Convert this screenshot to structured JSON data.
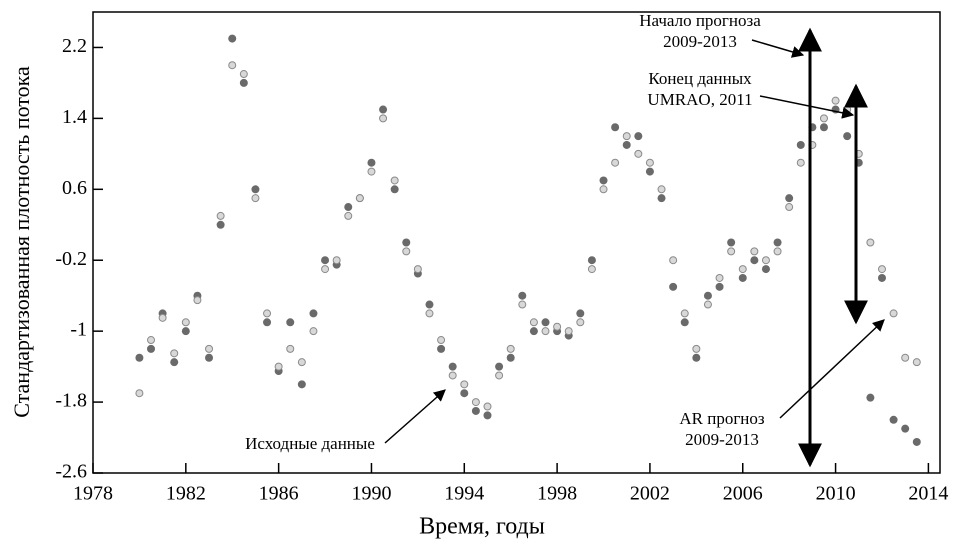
{
  "chart_data": {
    "type": "scatter",
    "x_label": "Время, годы",
    "y_label": "Стандартизованная плотность потока",
    "xlim": [
      1978,
      2014.5
    ],
    "xticks": [
      1978,
      1982,
      1986,
      1990,
      1994,
      1998,
      2002,
      2006,
      2010,
      2014
    ],
    "ylim": [
      -2.6,
      2.6
    ],
    "yticks": [
      -2.6,
      -1.8,
      -1.0,
      -0.2,
      0.6,
      1.4,
      2.2
    ],
    "grid": false,
    "x": [
      1980.0,
      1980.5,
      1981.0,
      1981.5,
      1982.0,
      1982.5,
      1983.0,
      1983.5,
      1984.0,
      1984.5,
      1985.0,
      1985.5,
      1986.0,
      1986.5,
      1987.0,
      1987.5,
      1988.0,
      1988.5,
      1989.0,
      1989.5,
      1990.0,
      1990.5,
      1991.0,
      1991.5,
      1992.0,
      1992.5,
      1993.0,
      1993.5,
      1994.0,
      1994.5,
      1995.0,
      1995.5,
      1996.0,
      1996.5,
      1997.0,
      1997.5,
      1998.0,
      1998.5,
      1999.0,
      1999.5,
      2000.0,
      2000.5,
      2001.0,
      2001.5,
      2002.0,
      2002.5,
      2003.0,
      2003.5,
      2004.0,
      2004.5,
      2005.0,
      2005.5,
      2006.0,
      2006.5,
      2007.0,
      2007.5,
      2008.0,
      2008.5,
      2009.0,
      2009.5,
      2010.0,
      2010.5,
      2011.0,
      2011.5,
      2012.0,
      2012.5,
      2013.0,
      2013.5
    ],
    "series": [
      {
        "color": "#6a6a6a",
        "values": [
          -1.3,
          -1.2,
          -0.8,
          -1.35,
          -1.0,
          -0.6,
          -1.3,
          0.2,
          2.3,
          1.8,
          0.6,
          -0.9,
          -1.45,
          -0.9,
          -1.6,
          -0.8,
          -0.2,
          -0.25,
          0.4,
          0.5,
          0.9,
          1.5,
          0.6,
          0.0,
          -0.35,
          -0.7,
          -1.2,
          -1.4,
          -1.7,
          -1.9,
          -1.95,
          -1.4,
          -1.3,
          -0.6,
          -1.0,
          -0.9,
          -1.0,
          -1.05,
          -0.8,
          -0.2,
          0.7,
          1.3,
          1.1,
          1.2,
          0.8,
          0.5,
          -0.5,
          -0.9,
          -1.3,
          -0.6,
          -0.5,
          0.0,
          -0.4,
          -0.2,
          -0.3,
          0.0,
          0.5,
          1.1,
          1.3,
          1.3,
          1.5,
          1.2,
          0.9,
          -1.75,
          -0.4,
          -2.0,
          -2.1,
          -2.25
        ]
      },
      {
        "color": "#d8d8d8",
        "values": [
          -1.7,
          -1.1,
          -0.85,
          -1.25,
          -0.9,
          -0.65,
          -1.2,
          0.3,
          2.0,
          1.9,
          0.5,
          -0.8,
          -1.4,
          -1.2,
          -1.35,
          -1.0,
          -0.3,
          -0.2,
          0.3,
          0.5,
          0.8,
          1.4,
          0.7,
          -0.1,
          -0.3,
          -0.8,
          -1.1,
          -1.5,
          -1.6,
          -1.8,
          -1.85,
          -1.5,
          -1.2,
          -0.7,
          -0.9,
          -1.0,
          -0.95,
          -1.0,
          -0.9,
          -0.3,
          0.6,
          0.9,
          1.2,
          1.0,
          0.9,
          0.6,
          -0.2,
          -0.8,
          -1.2,
          -0.7,
          -0.4,
          -0.1,
          -0.3,
          -0.1,
          -0.2,
          -0.1,
          0.4,
          0.9,
          1.1,
          1.4,
          1.6,
          1.5,
          1.0,
          0.0,
          -0.3,
          -0.8,
          -1.3,
          -1.35
        ]
      }
    ],
    "annotations": [
      {
        "text": [
          "Начало прогноза",
          "2009-2013"
        ]
      },
      {
        "text": [
          "Конец данных",
          "UMRAO, 2011"
        ]
      },
      {
        "text": [
          "AR прогноз",
          "2009-2013"
        ]
      },
      {
        "text": [
          "Исходные данные"
        ]
      }
    ]
  }
}
